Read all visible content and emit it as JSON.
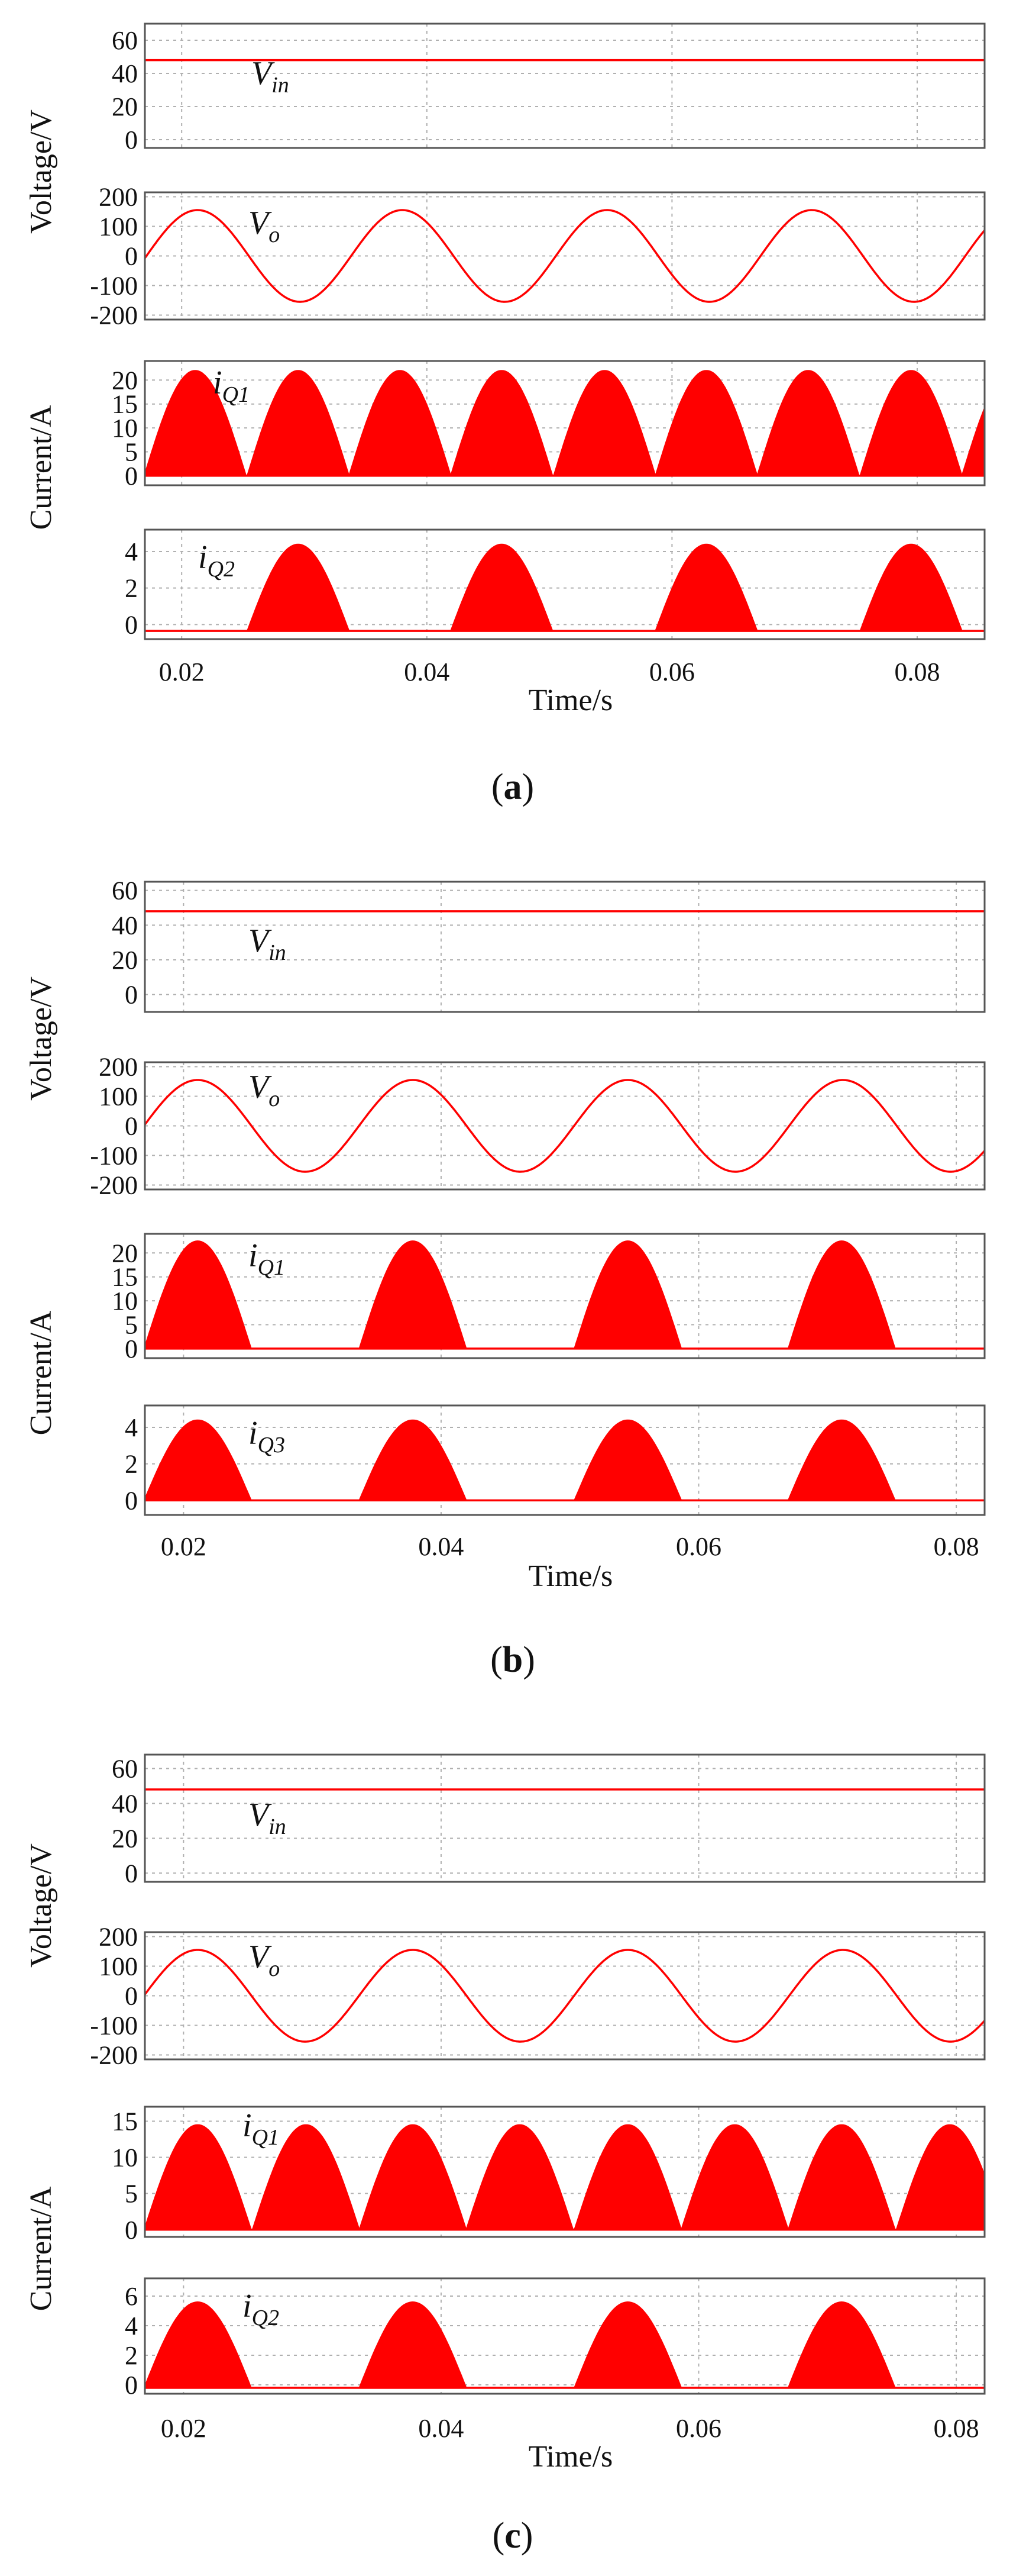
{
  "figure": {
    "trace_color": "#ff0000",
    "voltage_axis_label": "Voltage/V",
    "current_axis_label": "Current/A",
    "time_axis_label": "Time/s"
  },
  "chart_data": [
    {
      "id": "a",
      "type": "line",
      "caption": {
        "open": "(",
        "letter": "a",
        "close": ")"
      },
      "xlim": [
        0.017,
        0.0855
      ],
      "xticks": [
        0.02,
        0.04,
        0.06,
        0.08
      ],
      "xtick_labels": [
        "0.02",
        "0.04",
        "0.06",
        "0.08"
      ],
      "xlabel": "Time/s",
      "subplots": [
        {
          "key": "vin",
          "signal": "constant",
          "label_main": "V",
          "label_sub": "in",
          "ylim": [
            -5,
            70
          ],
          "yticks": [
            0,
            20,
            40,
            60
          ],
          "ytick_labels": [
            "0",
            "20",
            "40",
            "60"
          ],
          "value": 48
        },
        {
          "key": "vo",
          "signal": "sine",
          "label_main": "V",
          "label_sub": "o",
          "ylim": [
            -215,
            215
          ],
          "yticks": [
            -200,
            -100,
            0,
            100,
            200
          ],
          "ytick_labels": [
            "-200",
            "-100",
            "0",
            "100",
            "200"
          ],
          "amplitude": 155,
          "period": 0.0167,
          "peak_time": 0.0213
        },
        {
          "key": "iq1",
          "signal": "pulses",
          "label_main": "i",
          "label_sub": "Q1",
          "ylim": [
            -2,
            24
          ],
          "yticks": [
            0,
            5,
            10,
            15,
            20
          ],
          "ytick_labels": [
            "0",
            "5",
            "10",
            "15",
            "20"
          ],
          "peak": 22,
          "width": 0.0083,
          "centers": [
            0.0211,
            0.0295,
            0.0378,
            0.0461,
            0.0545,
            0.0628,
            0.0711,
            0.0795,
            0.0878
          ],
          "baseline": 0
        },
        {
          "key": "iq2",
          "signal": "pulses",
          "label_main": "i",
          "label_sub": "Q2",
          "ylim": [
            -0.8,
            5.2
          ],
          "yticks": [
            0,
            2,
            4
          ],
          "ytick_labels": [
            "0",
            "2",
            "4"
          ],
          "peak": 4.4,
          "width": 0.0083,
          "centers": [
            0.0295,
            0.0461,
            0.0628,
            0.0795
          ],
          "baseline": -0.35
        }
      ]
    },
    {
      "id": "b",
      "type": "line",
      "caption": {
        "open": "(",
        "letter": "b",
        "close": ")"
      },
      "xlim": [
        0.017,
        0.0822
      ],
      "xticks": [
        0.02,
        0.04,
        0.06,
        0.08
      ],
      "xtick_labels": [
        "0.02",
        "0.04",
        "0.06",
        "0.08"
      ],
      "xlabel": "Time/s",
      "subplots": [
        {
          "key": "vin",
          "signal": "constant",
          "label_main": "V",
          "label_sub": "in",
          "ylim": [
            -10,
            65
          ],
          "yticks": [
            0,
            20,
            40,
            60
          ],
          "ytick_labels": [
            "0",
            "20",
            "40",
            "60"
          ],
          "value": 48
        },
        {
          "key": "vo",
          "signal": "sine",
          "label_main": "V",
          "label_sub": "o",
          "ylim": [
            -215,
            215
          ],
          "yticks": [
            -200,
            -100,
            0,
            100,
            200
          ],
          "ytick_labels": [
            "-200",
            "-100",
            "0",
            "100",
            "200"
          ],
          "amplitude": 155,
          "period": 0.0167,
          "peak_time": 0.0211
        },
        {
          "key": "iq1",
          "signal": "pulses",
          "label_main": "i",
          "label_sub": "Q1",
          "ylim": [
            -2,
            24
          ],
          "yticks": [
            0,
            5,
            10,
            15,
            20
          ],
          "ytick_labels": [
            "0",
            "5",
            "10",
            "15",
            "20"
          ],
          "peak": 22.5,
          "width": 0.0083,
          "centers": [
            0.0211,
            0.0378,
            0.0545,
            0.0711
          ],
          "baseline": 0
        },
        {
          "key": "iq3",
          "signal": "pulses",
          "label_main": "i",
          "label_sub": "Q3",
          "ylim": [
            -0.8,
            5.2
          ],
          "yticks": [
            0,
            2,
            4
          ],
          "ytick_labels": [
            "0",
            "2",
            "4"
          ],
          "peak": 4.4,
          "width": 0.0083,
          "centers": [
            0.0211,
            0.0378,
            0.0545,
            0.0711
          ],
          "baseline": 0
        }
      ]
    },
    {
      "id": "c",
      "type": "line",
      "caption": {
        "open": "(",
        "letter": "c",
        "close": ")"
      },
      "xlim": [
        0.017,
        0.0822
      ],
      "xticks": [
        0.02,
        0.04,
        0.06,
        0.08
      ],
      "xtick_labels": [
        "0.02",
        "0.04",
        "0.06",
        "0.08"
      ],
      "xlabel": "Time/s",
      "subplots": [
        {
          "key": "vin",
          "signal": "constant",
          "label_main": "V",
          "label_sub": "in",
          "ylim": [
            -5,
            68
          ],
          "yticks": [
            0,
            20,
            40,
            60
          ],
          "ytick_labels": [
            "0",
            "20",
            "40",
            "60"
          ],
          "value": 48
        },
        {
          "key": "vo",
          "signal": "sine",
          "label_main": "V",
          "label_sub": "o",
          "ylim": [
            -215,
            215
          ],
          "yticks": [
            -200,
            -100,
            0,
            100,
            200
          ],
          "ytick_labels": [
            "-200",
            "-100",
            "0",
            "100",
            "200"
          ],
          "amplitude": 155,
          "period": 0.0167,
          "peak_time": 0.0211
        },
        {
          "key": "iq1",
          "signal": "pulses",
          "label_main": "i",
          "label_sub": "Q1",
          "ylim": [
            -1,
            17
          ],
          "yticks": [
            0,
            5,
            10,
            15
          ],
          "ytick_labels": [
            "0",
            "5",
            "10",
            "15"
          ],
          "peak": 14.5,
          "width": 0.0083,
          "centers": [
            0.0211,
            0.0295,
            0.0378,
            0.0461,
            0.0545,
            0.0628,
            0.0711,
            0.0795,
            0.0878
          ],
          "baseline": 0
        },
        {
          "key": "iq2",
          "signal": "pulses",
          "label_main": "i",
          "label_sub": "Q2",
          "ylim": [
            -0.6,
            7.2
          ],
          "yticks": [
            0,
            2,
            4,
            6
          ],
          "ytick_labels": [
            "0",
            "2",
            "4",
            "6"
          ],
          "peak": 5.6,
          "width": 0.0083,
          "centers": [
            0.0211,
            0.0378,
            0.0545,
            0.0711
          ],
          "baseline": -0.2
        }
      ]
    }
  ]
}
